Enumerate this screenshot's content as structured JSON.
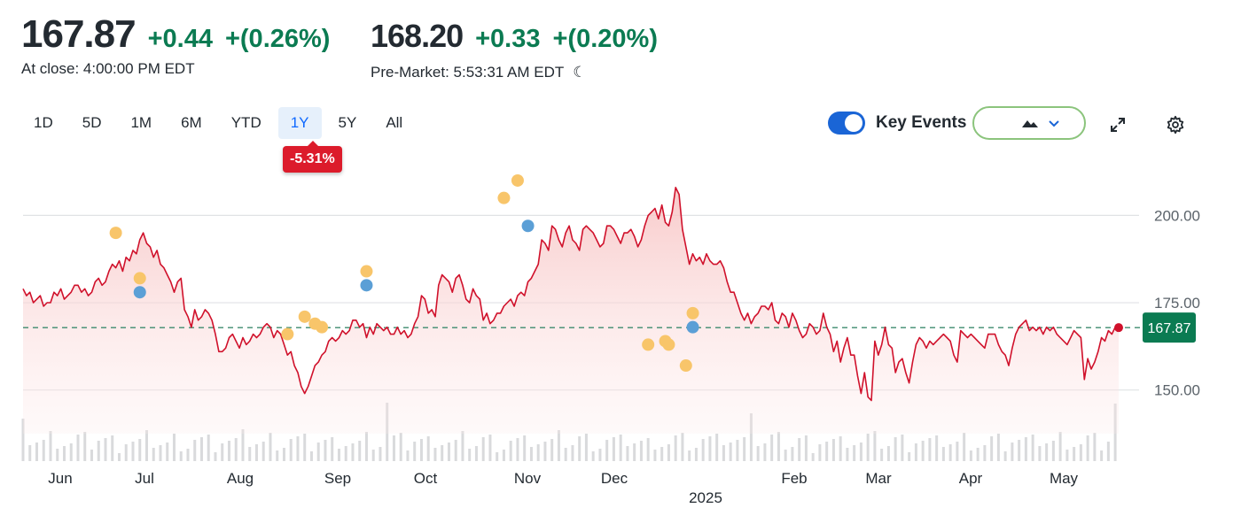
{
  "quote": {
    "close_price": "167.87",
    "close_change": "+0.44",
    "close_change_pct": "+(0.26%)",
    "close_label": "At close: 4:00:00 PM EDT",
    "pre_price": "168.20",
    "pre_change": "+0.33",
    "pre_change_pct": "+(0.20%)",
    "pre_label": "Pre-Market: 5:53:31 AM EDT",
    "pre_icon": "moon-icon"
  },
  "ranges": [
    "1D",
    "5D",
    "1M",
    "6M",
    "YTD",
    "1Y",
    "5Y",
    "All"
  ],
  "active_range": "1Y",
  "period_change": "-5.31%",
  "key_events": {
    "label": "Key Events",
    "enabled": true
  },
  "chart_type_icon": "mountain-icon",
  "toolbar_icons": [
    "expand-icon",
    "gear-icon"
  ],
  "colors": {
    "up": "#0b7b52",
    "down": "#dc1b2b",
    "line": "#d0112b",
    "accent": "#1a65d6",
    "event_yellow": "#f8c56a",
    "event_blue": "#5b9fd6"
  },
  "chart_data": {
    "type": "line",
    "ylim": [
      137.5,
      211
    ],
    "y_ticks": [
      150.0,
      175.0,
      200.0
    ],
    "y_tick_labels": [
      "150.00",
      "175.00",
      "200.00"
    ],
    "x_labels": [
      "Jun",
      "Jul",
      "Aug",
      "Sep",
      "Oct",
      "Nov",
      "Dec",
      "Feb",
      "Mar",
      "Apr",
      "May"
    ],
    "year_label": "2025",
    "reference_line": 167.87,
    "last_price_label": "167.87",
    "series": [
      {
        "values": [
          179,
          177,
          178,
          175,
          176,
          177,
          174,
          175,
          175,
          178,
          177,
          179,
          176,
          177,
          178,
          180,
          180,
          178,
          179,
          177,
          178,
          181,
          182,
          180,
          181,
          184,
          186,
          185,
          187,
          184,
          188,
          187,
          190,
          189,
          193,
          195,
          192,
          191,
          188,
          190,
          186,
          185,
          183,
          181,
          178,
          181,
          182,
          173,
          171,
          168,
          173,
          170,
          171,
          173,
          172,
          170,
          166,
          161,
          161,
          162,
          165,
          166,
          164,
          162,
          165,
          163,
          164,
          166,
          165,
          166,
          168,
          169,
          168,
          165,
          167,
          166,
          163,
          160,
          161,
          157,
          155,
          151,
          149,
          151,
          154,
          157,
          158,
          160,
          161,
          164,
          165,
          164,
          165,
          167,
          166,
          167,
          170,
          170,
          168,
          169,
          165,
          168,
          166,
          169,
          168,
          167,
          168,
          166,
          166,
          168,
          166,
          167,
          165,
          166,
          169,
          171,
          177,
          176,
          172,
          173,
          171,
          180,
          183,
          182,
          181,
          178,
          182,
          183,
          180,
          176,
          175,
          179,
          177,
          176,
          170,
          172,
          169,
          170,
          172,
          172,
          174,
          175,
          176,
          174,
          177,
          178,
          177,
          181,
          182,
          184,
          186,
          193,
          192,
          190,
          197,
          196,
          193,
          191,
          195,
          197,
          193,
          192,
          190,
          196,
          197,
          196,
          195,
          193,
          191,
          192,
          197,
          197,
          196,
          194,
          192,
          195,
          195,
          196,
          194,
          191,
          193,
          197,
          200,
          201,
          202,
          199,
          203,
          198,
          197,
          201,
          208,
          206,
          196,
          191,
          186,
          189,
          187,
          188,
          186,
          189,
          187,
          186,
          186,
          187,
          185,
          181,
          178,
          178,
          175,
          172,
          170,
          172,
          169,
          171,
          172,
          174,
          174,
          173,
          175,
          170,
          169,
          172,
          171,
          168,
          172,
          170,
          167,
          165,
          166,
          169,
          168,
          166,
          167,
          172,
          168,
          166,
          161,
          164,
          158,
          162,
          165,
          160,
          160,
          154,
          149,
          155,
          148,
          147,
          164,
          160,
          163,
          168,
          163,
          162,
          155,
          158,
          159,
          155,
          152,
          158,
          163,
          165,
          164,
          162,
          164,
          163,
          164,
          165,
          166,
          165,
          164,
          160,
          158,
          167,
          166,
          165,
          166,
          165,
          164,
          163,
          162,
          166,
          166,
          166,
          163,
          161,
          160,
          157,
          162,
          166,
          168,
          169,
          170,
          167,
          168,
          167,
          168,
          166,
          168,
          167,
          168,
          166,
          165,
          164,
          163,
          165,
          167,
          166,
          165,
          153,
          159,
          156,
          158,
          161,
          165,
          164,
          167,
          166,
          168,
          167.87
        ]
      }
    ],
    "events": [
      {
        "index": 27,
        "value": 195,
        "type": "yellow"
      },
      {
        "index": 34,
        "value": 182,
        "type": "yellow"
      },
      {
        "index": 34,
        "value": 178,
        "type": "blue"
      },
      {
        "index": 77,
        "value": 166,
        "type": "yellow"
      },
      {
        "index": 82,
        "value": 171,
        "type": "yellow"
      },
      {
        "index": 85,
        "value": 169,
        "type": "yellow"
      },
      {
        "index": 87,
        "value": 168,
        "type": "yellow"
      },
      {
        "index": 100,
        "value": 184,
        "type": "yellow"
      },
      {
        "index": 100,
        "value": 180,
        "type": "blue"
      },
      {
        "index": 140,
        "value": 205,
        "type": "yellow"
      },
      {
        "index": 144,
        "value": 210,
        "type": "yellow"
      },
      {
        "index": 147,
        "value": 197,
        "type": "blue"
      },
      {
        "index": 182,
        "value": 163,
        "type": "yellow"
      },
      {
        "index": 187,
        "value": 164,
        "type": "yellow"
      },
      {
        "index": 188,
        "value": 163,
        "type": "yellow"
      },
      {
        "index": 193,
        "value": 157,
        "type": "yellow"
      },
      {
        "index": 195,
        "value": 172,
        "type": "yellow"
      },
      {
        "index": 195,
        "value": 168,
        "type": "blue"
      }
    ]
  }
}
